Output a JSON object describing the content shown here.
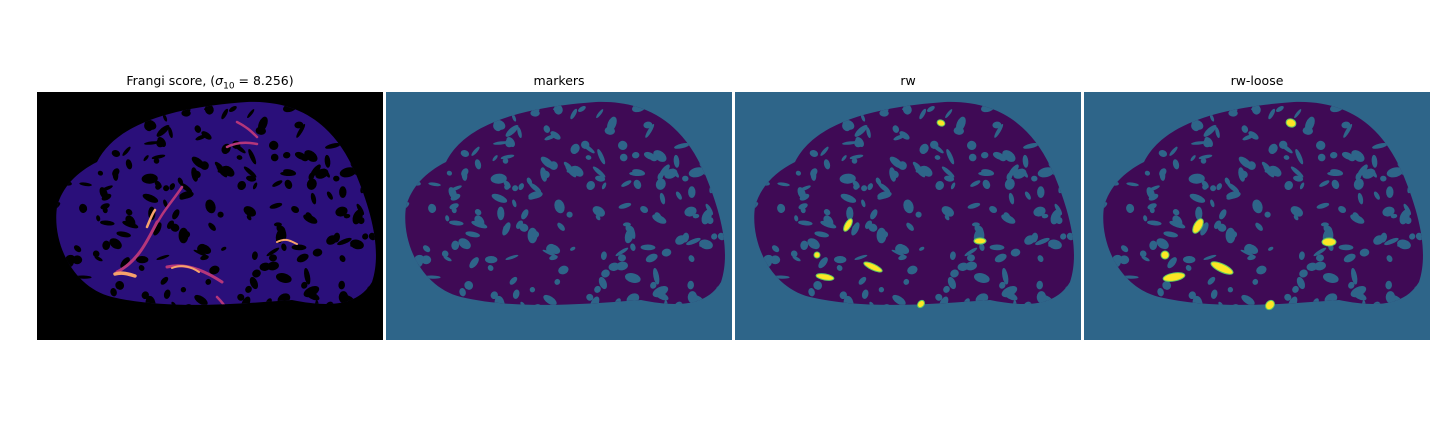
{
  "figure": {
    "panels": [
      {
        "id": "frangi",
        "title_prefix": "Frangi score, (",
        "title_math": "σ",
        "title_sub": "10",
        "title_suffix": " = 8.256)",
        "colormap": "magma",
        "background": "#000000",
        "blob_color": "#2a0f7a",
        "pore_color": "#000000"
      },
      {
        "id": "markers",
        "title": "markers",
        "colormap": "viridis",
        "background": "#2e6589",
        "blob_color": "#3f0a55",
        "pore_color": "#2e6589"
      },
      {
        "id": "rw",
        "title": "rw",
        "colormap": "viridis",
        "background": "#2e6589",
        "blob_color": "#3f0a55",
        "pore_color": "#2e6589"
      },
      {
        "id": "rw-loose",
        "title": "rw-loose",
        "colormap": "viridis",
        "background": "#2e6589",
        "blob_color": "#3f0a55",
        "pore_color": "#2e6589"
      }
    ],
    "highlight_color": "#fde725",
    "highlight_edge": "#5ec962",
    "frangi_hot": "#f7a36b",
    "frangi_warm": "#b5367a"
  }
}
